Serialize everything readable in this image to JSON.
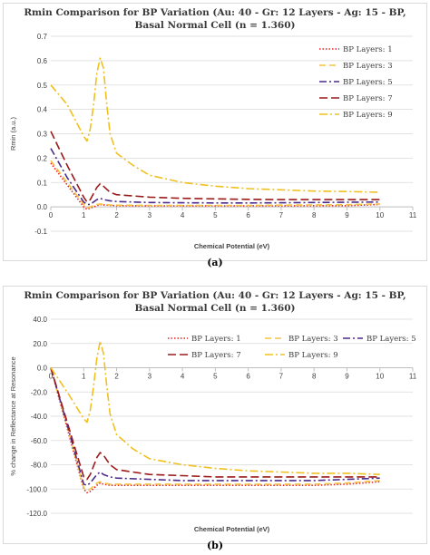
{
  "chart_data": [
    {
      "type": "line",
      "title_lines": [
        "Rmin Comparison for BP Variation (Au: 40 - Gr: 12 Layers - Ag: 15 - BP,",
        "Basal Normal Cell (n = 1.360)"
      ],
      "xlabel": "Chemical Potential (eV)",
      "ylabel": "Rmin (a.u.)",
      "xlim": [
        0,
        11
      ],
      "ylim": [
        -0.1,
        0.7
      ],
      "xticks": [
        "0",
        "1",
        "2",
        "3",
        "4",
        "5",
        "6",
        "7",
        "8",
        "9",
        "10",
        "11"
      ],
      "yticks": [
        "0.7",
        "0.6",
        "0.5",
        "0.4",
        "0.3",
        "0.2",
        "0.1",
        "0.0",
        "-0.1"
      ],
      "legend_position": "right",
      "series": [
        {
          "name": "BP Layers: 1",
          "color": "#e8211f",
          "dash": "1.5 2",
          "x": [
            0,
            0.5,
            1,
            1.1,
            1.2,
            1.4,
            1.5,
            1.6,
            1.8,
            2,
            3,
            4,
            5,
            6,
            7,
            8,
            9,
            10
          ],
          "y": [
            0.18,
            0.09,
            0.0,
            -0.01,
            -0.005,
            0.005,
            0.01,
            0.008,
            0.006,
            0.005,
            0.004,
            0.004,
            0.004,
            0.004,
            0.004,
            0.005,
            0.005,
            0.01
          ]
        },
        {
          "name": "BP Layers: 3",
          "color": "#f5c342",
          "dash": "7 4",
          "x": [
            0,
            0.5,
            1,
            1.1,
            1.2,
            1.4,
            1.5,
            1.6,
            1.8,
            2,
            3,
            4,
            5,
            6,
            7,
            8,
            9,
            10
          ],
          "y": [
            0.19,
            0.1,
            0.01,
            -0.005,
            0.0,
            0.01,
            0.012,
            0.01,
            0.008,
            0.007,
            0.006,
            0.006,
            0.006,
            0.006,
            0.007,
            0.008,
            0.009,
            0.012
          ]
        },
        {
          "name": "BP Layers: 5",
          "color": "#4b2c8c",
          "dash": "8 3 2 3",
          "x": [
            0,
            0.5,
            1,
            1.1,
            1.2,
            1.4,
            1.5,
            1.6,
            1.8,
            2,
            3,
            4,
            5,
            6,
            7,
            8,
            9,
            10
          ],
          "y": [
            0.24,
            0.12,
            0.02,
            0.01,
            0.01,
            0.03,
            0.035,
            0.03,
            0.025,
            0.022,
            0.018,
            0.017,
            0.016,
            0.016,
            0.017,
            0.018,
            0.019,
            0.02
          ]
        },
        {
          "name": "BP Layers: 7",
          "color": "#9b1b1b",
          "dash": "9 4",
          "x": [
            0,
            0.5,
            1,
            1.1,
            1.2,
            1.4,
            1.5,
            1.6,
            1.8,
            2,
            3,
            4,
            5,
            6,
            7,
            8,
            9,
            10
          ],
          "y": [
            0.31,
            0.17,
            0.04,
            0.02,
            0.03,
            0.08,
            0.095,
            0.085,
            0.06,
            0.05,
            0.04,
            0.035,
            0.033,
            0.031,
            0.03,
            0.03,
            0.03,
            0.03
          ]
        },
        {
          "name": "BP Layers: 9",
          "color": "#f0c020",
          "dash": "9 3 2 3",
          "x": [
            0,
            0.5,
            1,
            1.1,
            1.2,
            1.3,
            1.4,
            1.5,
            1.6,
            1.7,
            1.8,
            2,
            2.5,
            3,
            4,
            5,
            6,
            7,
            8,
            9,
            10
          ],
          "y": [
            0.5,
            0.42,
            0.29,
            0.27,
            0.32,
            0.42,
            0.55,
            0.61,
            0.57,
            0.42,
            0.3,
            0.22,
            0.17,
            0.13,
            0.1,
            0.085,
            0.075,
            0.07,
            0.065,
            0.063,
            0.06
          ]
        }
      ]
    },
    {
      "type": "line",
      "title_lines": [
        "Rmin Comparison for BP Variation (Au: 40 - Gr: 12 Layers - Ag: 15 - BP,",
        "Basal Normal Cell (n = 1.360)"
      ],
      "xlabel": "Chemical Potential (eV)",
      "ylabel": "% change in Reflectance at Resonance",
      "xlim": [
        0,
        11
      ],
      "ylim": [
        -120,
        40
      ],
      "xticks": [
        "0",
        "1",
        "2",
        "3",
        "4",
        "5",
        "6",
        "7",
        "8",
        "9",
        "10",
        "11"
      ],
      "yticks": [
        "40.0",
        "20.0",
        "0.0",
        "-20.0",
        "-40.0",
        "-60.0",
        "-80.0",
        "-100.0",
        "-120.0"
      ],
      "legend_position": "top",
      "series": [
        {
          "name": "BP Layers: 1",
          "color": "#e8211f",
          "dash": "1.5 2",
          "x": [
            0,
            0.5,
            1,
            1.1,
            1.2,
            1.4,
            1.5,
            1.6,
            1.8,
            2,
            3,
            4,
            5,
            6,
            7,
            8,
            9,
            10
          ],
          "y": [
            0,
            -50,
            -100,
            -103,
            -102,
            -97,
            -95,
            -96,
            -97,
            -97,
            -97,
            -97,
            -97,
            -97,
            -97,
            -97,
            -96,
            -94
          ]
        },
        {
          "name": "BP Layers: 3",
          "color": "#f5c342",
          "dash": "7 4",
          "x": [
            0,
            0.5,
            1,
            1.1,
            1.2,
            1.4,
            1.5,
            1.6,
            1.8,
            2,
            3,
            4,
            5,
            6,
            7,
            8,
            9,
            10
          ],
          "y": [
            0,
            -48,
            -99,
            -101,
            -100,
            -95,
            -94,
            -95,
            -96,
            -96,
            -96,
            -96,
            -96,
            -96,
            -96,
            -96,
            -95,
            -93
          ]
        },
        {
          "name": "BP Layers: 5",
          "color": "#4b2c8c",
          "dash": "8 3 2 3",
          "x": [
            0,
            0.5,
            1,
            1.1,
            1.2,
            1.4,
            1.5,
            1.6,
            1.8,
            2,
            3,
            4,
            5,
            6,
            7,
            8,
            9,
            10
          ],
          "y": [
            0,
            -47,
            -96,
            -97,
            -95,
            -88,
            -86,
            -88,
            -90,
            -91,
            -92,
            -93,
            -93,
            -93,
            -93,
            -93,
            -92,
            -91
          ]
        },
        {
          "name": "BP Layers: 7",
          "color": "#9b1b1b",
          "dash": "9 4",
          "x": [
            0,
            0.5,
            1,
            1.1,
            1.2,
            1.4,
            1.5,
            1.6,
            1.8,
            2,
            3,
            4,
            5,
            6,
            7,
            8,
            9,
            10
          ],
          "y": [
            0,
            -45,
            -90,
            -92,
            -88,
            -74,
            -70,
            -72,
            -80,
            -84,
            -88,
            -89,
            -90,
            -90,
            -90,
            -90,
            -90,
            -90
          ]
        },
        {
          "name": "BP Layers: 9",
          "color": "#f0c020",
          "dash": "9 3 2 3",
          "x": [
            0,
            0.5,
            1,
            1.1,
            1.2,
            1.3,
            1.4,
            1.5,
            1.6,
            1.7,
            1.8,
            2,
            2.5,
            3,
            4,
            5,
            6,
            7,
            8,
            9,
            10
          ],
          "y": [
            0,
            -20,
            -42,
            -45,
            -35,
            -15,
            8,
            22,
            12,
            -15,
            -38,
            -55,
            -67,
            -75,
            -80,
            -83,
            -85,
            -86,
            -87,
            -87,
            -88
          ]
        }
      ]
    }
  ],
  "captions": [
    "(a)",
    "(b)"
  ]
}
